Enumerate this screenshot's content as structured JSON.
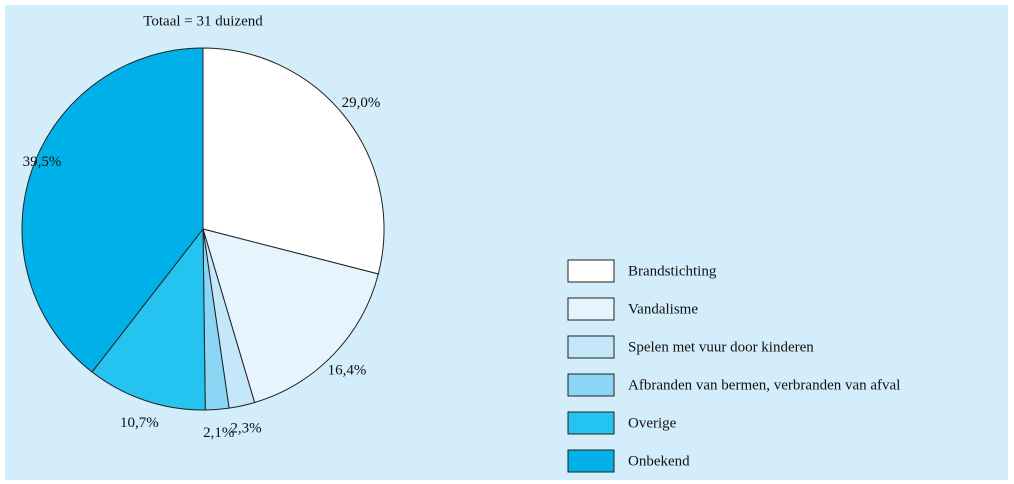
{
  "chart_data": {
    "type": "pie",
    "title": "Totaal = 31 duizend",
    "categories": [
      "Brandstichting",
      "Vandalisme",
      "Spelen met vuur door kinderen",
      "Afbranden van bermen, verbranden van afval",
      "Overige",
      "Onbekend"
    ],
    "values": [
      29.0,
      16.4,
      2.3,
      2.1,
      10.7,
      39.5
    ],
    "value_labels": [
      "29,0%",
      "16,4%",
      "2,3%",
      "2,1%",
      "10,7%",
      "39,5%"
    ],
    "colors": [
      "#ffffff",
      "#e6f5fd",
      "#c4e8f9",
      "#8bd6f4",
      "#25c3ef",
      "#00b1e9"
    ]
  }
}
